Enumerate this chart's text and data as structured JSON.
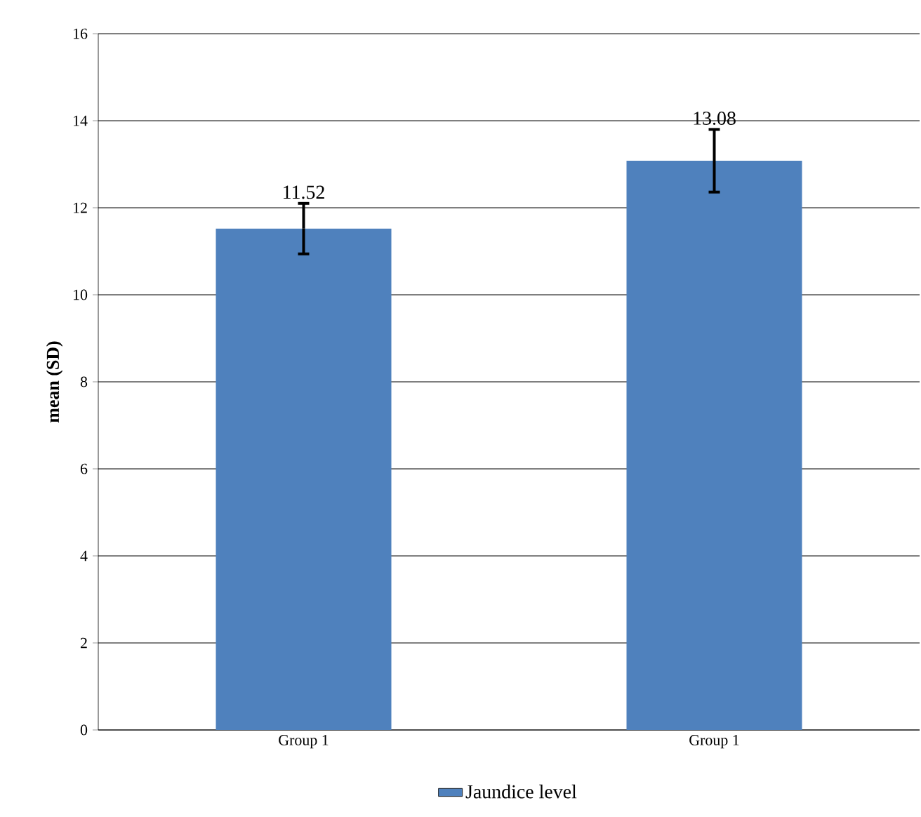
{
  "chart_data": {
    "type": "bar",
    "ylabel": "mean (SD)",
    "categories": [
      "Group 1",
      "Group 1"
    ],
    "series": [
      {
        "name": "Jaundice level",
        "color": "#4f81bd",
        "values": [
          11.52,
          13.08
        ],
        "errors": [
          0.58,
          0.72
        ]
      }
    ],
    "ylim": [
      0,
      16
    ],
    "yticks": [
      0,
      2,
      4,
      6,
      8,
      10,
      12,
      14,
      16
    ],
    "grid": "y",
    "legend": "bottom",
    "data_labels": true
  }
}
